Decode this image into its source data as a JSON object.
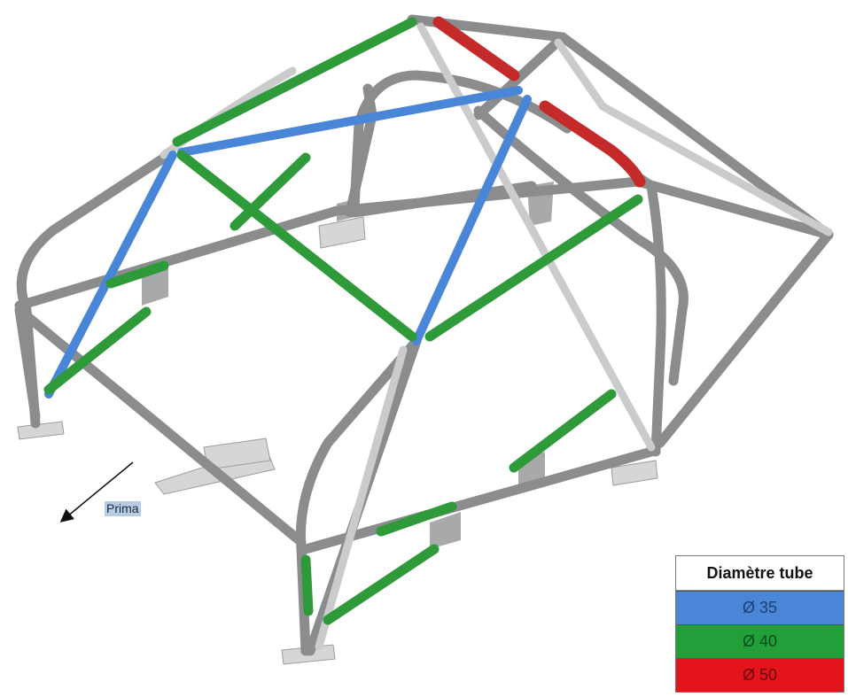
{
  "direction_label": "Prima",
  "legend": {
    "title": "Diamètre tube",
    "rows": [
      {
        "label": "Ø 35",
        "color": "#4a86d8",
        "text_color": "#1d3f73"
      },
      {
        "label": "Ø 40",
        "color": "#21a03a",
        "text_color": "#0f4a1a"
      },
      {
        "label": "Ø 50",
        "color": "#e3141b",
        "text_color": "#6a0a0d"
      }
    ]
  },
  "colors": {
    "tube_grey": "#8a8c8e",
    "tube_light": "#c9cbcd",
    "tube_blue": "#4a86d8",
    "tube_green": "#2f9a3a",
    "tube_red": "#c42a2a"
  }
}
